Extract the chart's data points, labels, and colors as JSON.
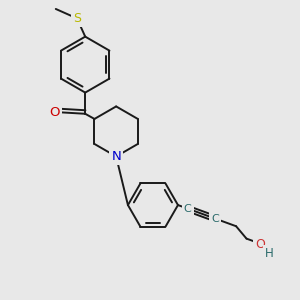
{
  "bg_color": "#e8e8e8",
  "bond_color": "#1a1a1a",
  "bond_width": 1.4,
  "atom_colors": {
    "S": "#b8b800",
    "O": "#cc0000",
    "N": "#0000cc",
    "C_alkyne": "#2a6a6a",
    "OH": "#cc3333",
    "H": "#2a6a6a"
  },
  "xlim": [
    0,
    10
  ],
  "ylim": [
    0,
    10
  ],
  "fig_width": 3.0,
  "fig_height": 3.0,
  "dpi": 100
}
